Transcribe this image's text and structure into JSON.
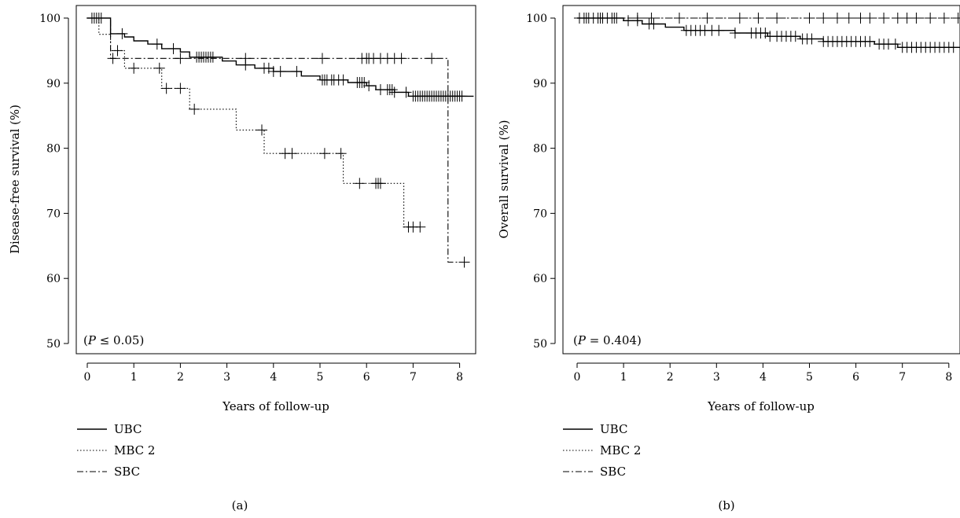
{
  "chart_data": [
    {
      "type": "line",
      "panel_label": "(a)",
      "xlabel": "Years of follow-up",
      "ylabel": "Disease-free survival (%)",
      "xlim": [
        0,
        8.3
      ],
      "ylim": [
        48,
        102
      ],
      "xticks": [
        "0",
        "1",
        "2",
        "3",
        "4",
        "5",
        "6",
        "7",
        "8"
      ],
      "yticks": [
        "50",
        "60",
        "70",
        "80",
        "90",
        "100"
      ],
      "annotation": {
        "prefix": "(",
        "italic": "P",
        "suffix": " ≤ 0.05)"
      },
      "legend_position": "bottom-left, below plot",
      "series": [
        {
          "name": "UBC",
          "linestyle": "solid",
          "steps": [
            [
              0,
              100
            ],
            [
              0.5,
              100
            ],
            [
              0.5,
              97.6
            ],
            [
              0.8,
              97.6
            ],
            [
              0.8,
              97.1
            ],
            [
              1.0,
              97.1
            ],
            [
              1.0,
              96.5
            ],
            [
              1.3,
              96.5
            ],
            [
              1.3,
              96.0
            ],
            [
              1.6,
              96.0
            ],
            [
              1.6,
              95.3
            ],
            [
              2.0,
              95.3
            ],
            [
              2.0,
              94.8
            ],
            [
              2.2,
              94.8
            ],
            [
              2.2,
              94.0
            ],
            [
              2.9,
              94.0
            ],
            [
              2.9,
              93.4
            ],
            [
              3.2,
              93.4
            ],
            [
              3.2,
              92.8
            ],
            [
              3.6,
              92.8
            ],
            [
              3.6,
              92.3
            ],
            [
              4.0,
              92.3
            ],
            [
              4.0,
              91.8
            ],
            [
              4.6,
              91.8
            ],
            [
              4.6,
              91.1
            ],
            [
              5.0,
              91.1
            ],
            [
              5.0,
              90.5
            ],
            [
              5.6,
              90.5
            ],
            [
              5.6,
              90.1
            ],
            [
              6.0,
              90.1
            ],
            [
              6.0,
              89.6
            ],
            [
              6.2,
              89.6
            ],
            [
              6.2,
              89.0
            ],
            [
              6.6,
              89.0
            ],
            [
              6.6,
              88.6
            ],
            [
              6.9,
              88.6
            ],
            [
              6.9,
              88.0
            ],
            [
              8.3,
              88.0
            ]
          ],
          "censor_x": [
            0.1,
            0.15,
            0.2,
            0.25,
            0.3,
            0.75,
            1.5,
            1.85,
            2.35,
            2.4,
            2.45,
            2.5,
            2.55,
            2.6,
            2.65,
            2.7,
            3.4,
            3.8,
            3.9,
            4.0,
            4.15,
            4.5,
            5.05,
            5.1,
            5.15,
            5.25,
            5.3,
            5.4,
            5.5,
            5.8,
            5.85,
            5.9,
            5.95,
            6.05,
            6.3,
            6.45,
            6.5,
            6.55,
            6.6,
            6.85,
            7.0,
            7.05,
            7.1,
            7.15,
            7.2,
            7.25,
            7.3,
            7.35,
            7.4,
            7.45,
            7.5,
            7.55,
            7.6,
            7.65,
            7.7,
            7.75,
            7.8,
            7.85,
            7.9,
            7.95,
            8.0,
            8.05
          ]
        },
        {
          "name": "MBC 2",
          "linestyle": "dotted",
          "steps": [
            [
              0,
              100
            ],
            [
              0.25,
              100
            ],
            [
              0.25,
              97.5
            ],
            [
              0.5,
              97.5
            ],
            [
              0.5,
              95.0
            ],
            [
              0.8,
              95.0
            ],
            [
              0.8,
              92.3
            ],
            [
              1.6,
              92.3
            ],
            [
              1.6,
              89.2
            ],
            [
              2.2,
              89.2
            ],
            [
              2.2,
              86.0
            ],
            [
              3.2,
              86.0
            ],
            [
              3.2,
              82.8
            ],
            [
              3.8,
              82.8
            ],
            [
              3.8,
              79.2
            ],
            [
              5.5,
              79.2
            ],
            [
              5.5,
              74.6
            ],
            [
              6.8,
              74.6
            ],
            [
              6.8,
              67.9
            ],
            [
              7.2,
              67.9
            ]
          ],
          "censor_x": [
            0.65,
            1.0,
            1.55,
            1.7,
            2.0,
            2.3,
            3.75,
            4.25,
            4.4,
            5.1,
            5.45,
            5.85,
            6.2,
            6.25,
            6.3,
            6.9,
            7.0,
            7.15
          ]
        },
        {
          "name": "SBC",
          "linestyle": "dash-dot",
          "steps": [
            [
              0,
              100
            ],
            [
              0.5,
              100
            ],
            [
              0.5,
              93.8
            ],
            [
              7.75,
              93.8
            ],
            [
              7.75,
              62.5
            ],
            [
              8.0,
              62.5
            ]
          ],
          "censor_x": [
            0.55,
            2.0,
            3.4,
            5.05,
            5.9,
            6.0,
            6.05,
            6.15,
            6.3,
            6.45,
            6.6,
            6.75,
            7.4,
            8.1
          ],
          "censor_y_override": {
            "8.1": 62.5
          }
        }
      ]
    },
    {
      "type": "line",
      "panel_label": "(b)",
      "xlabel": "Years of follow-up",
      "ylabel": "Overall survival (%)",
      "xlim": [
        0,
        8.3
      ],
      "ylim": [
        48,
        102
      ],
      "xticks": [
        "0",
        "1",
        "2",
        "3",
        "4",
        "5",
        "6",
        "7",
        "8"
      ],
      "yticks": [
        "50",
        "60",
        "70",
        "80",
        "90",
        "100"
      ],
      "annotation": {
        "prefix": "(",
        "italic": "P",
        "suffix": " = 0.404)"
      },
      "legend_position": "bottom-left, below plot",
      "series": [
        {
          "name": "UBC",
          "linestyle": "solid",
          "steps": [
            [
              0,
              100
            ],
            [
              1.0,
              100
            ],
            [
              1.0,
              99.6
            ],
            [
              1.4,
              99.6
            ],
            [
              1.4,
              99.1
            ],
            [
              1.9,
              99.1
            ],
            [
              1.9,
              98.6
            ],
            [
              2.3,
              98.6
            ],
            [
              2.3,
              98.1
            ],
            [
              3.4,
              98.1
            ],
            [
              3.4,
              97.7
            ],
            [
              4.1,
              97.7
            ],
            [
              4.1,
              97.2
            ],
            [
              4.8,
              97.2
            ],
            [
              4.8,
              96.8
            ],
            [
              5.3,
              96.8
            ],
            [
              5.3,
              96.4
            ],
            [
              6.4,
              96.4
            ],
            [
              6.4,
              96.0
            ],
            [
              6.9,
              96.0
            ],
            [
              6.9,
              95.5
            ],
            [
              8.3,
              95.5
            ]
          ],
          "censor_x": [
            0.05,
            0.15,
            0.25,
            0.35,
            0.45,
            0.55,
            0.65,
            0.75,
            0.85,
            1.1,
            1.3,
            1.55,
            1.65,
            2.35,
            2.45,
            2.55,
            2.65,
            2.75,
            2.9,
            3.05,
            3.4,
            3.75,
            3.85,
            3.95,
            4.05,
            4.15,
            4.3,
            4.4,
            4.5,
            4.6,
            4.7,
            4.85,
            4.95,
            5.05,
            5.3,
            5.4,
            5.5,
            5.6,
            5.7,
            5.8,
            5.9,
            6.0,
            6.1,
            6.2,
            6.3,
            6.5,
            6.6,
            6.7,
            6.85,
            7.0,
            7.1,
            7.2,
            7.3,
            7.4,
            7.5,
            7.6,
            7.7,
            7.8,
            7.9,
            8.0,
            8.1
          ]
        },
        {
          "name": "MBC 2",
          "linestyle": "dotted",
          "steps": [
            [
              0,
              100
            ],
            [
              8.3,
              100
            ]
          ],
          "censor_x": []
        },
        {
          "name": "SBC",
          "linestyle": "dash-dot",
          "steps": [
            [
              0,
              100
            ],
            [
              8.3,
              100
            ]
          ],
          "censor_x": [
            0.2,
            0.5,
            0.8,
            1.3,
            1.6,
            2.2,
            2.8,
            3.5,
            3.9,
            4.3,
            5.0,
            5.3,
            5.6,
            5.85,
            6.1,
            6.3,
            6.6,
            6.9,
            7.1,
            7.3,
            7.6,
            7.9,
            8.2
          ]
        }
      ]
    }
  ]
}
